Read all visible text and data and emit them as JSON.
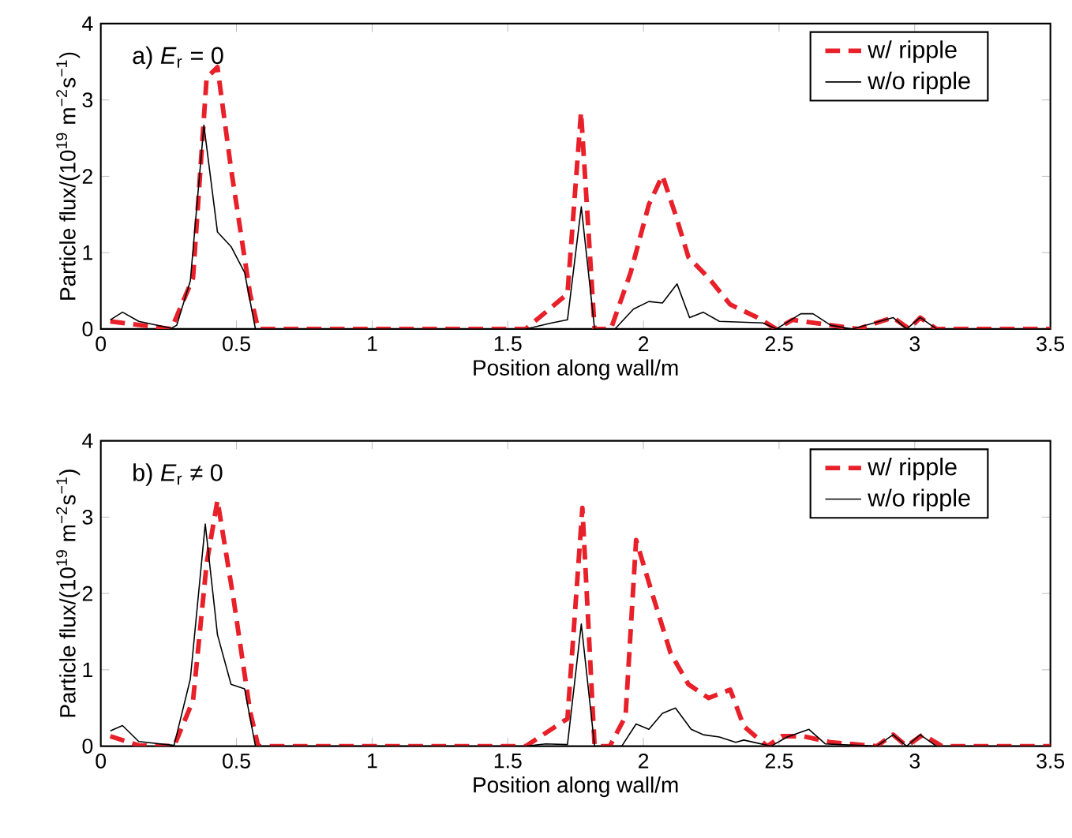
{
  "chart_data": [
    {
      "type": "line",
      "annotations": [
        "a) *E*$_{r}$ = 0"
      ],
      "xlabel": "Position along wall/m",
      "ylabel": "Particle flux/(10$^{19}$ m$^{−2}$s$^{−1}$)",
      "xlim": [
        0,
        3.5
      ],
      "xticks": [
        0,
        0.5,
        1,
        1.5,
        2,
        2.5,
        3,
        3.5
      ],
      "ylim": [
        0,
        4
      ],
      "yticks": [
        0,
        1,
        2,
        3,
        4
      ],
      "grid": false,
      "legend": "top right",
      "series": [
        {
          "name": "w/ ripple",
          "color": "#e8202a",
          "line_style": "dashed",
          "x": [
            0.035,
            0.26,
            0.34,
            0.39,
            0.43,
            0.48,
            0.55,
            0.58,
            1.566,
            1.72,
            1.77,
            1.82,
            1.88,
            1.953,
            2.02,
            2.07,
            2.118,
            2.166,
            2.24,
            2.32,
            2.42,
            2.49,
            2.55,
            2.69,
            2.79,
            2.92,
            2.98,
            3.02,
            3.08,
            3.5
          ],
          "values": [
            0.1,
            0,
            0.67,
            3.29,
            3.43,
            2.1,
            0.46,
            0,
            0,
            0.46,
            2.84,
            0,
            0,
            0.74,
            1.63,
            2.01,
            1.5,
            0.94,
            0.67,
            0.32,
            0.15,
            0,
            0.12,
            0.05,
            0,
            0.15,
            0,
            0.15,
            0,
            0
          ]
        },
        {
          "name": "w/o ripple",
          "color": "#000000",
          "line_style": "solid",
          "x": [
            0.035,
            0.08,
            0.14,
            0.26,
            0.28,
            0.33,
            0.38,
            0.43,
            0.48,
            0.53,
            0.57,
            1.566,
            1.662,
            1.72,
            1.771,
            1.82,
            1.895,
            1.963,
            2.02,
            2.07,
            2.124,
            2.17,
            2.22,
            2.28,
            2.44,
            2.49,
            2.58,
            2.625,
            2.69,
            2.77,
            2.92,
            2.97,
            3.02,
            3.08,
            3.5
          ],
          "values": [
            0.12,
            0.22,
            0.1,
            0.01,
            0.05,
            0.63,
            2.67,
            1.27,
            1.08,
            0.74,
            0,
            0,
            0.08,
            0.12,
            1.6,
            0,
            0,
            0.26,
            0.36,
            0.34,
            0.59,
            0.15,
            0.22,
            0.1,
            0.08,
            0,
            0.2,
            0.2,
            0.05,
            0,
            0.15,
            0,
            0.15,
            0,
            0
          ]
        }
      ]
    },
    {
      "type": "line",
      "annotations": [
        "b) *E*$_{r}$ ≠ 0"
      ],
      "xlabel": "Position along wall/m",
      "ylabel": "Particle flux/(10$^{19}$ m$^{−2}$s$^{−1}$)",
      "xlim": [
        0,
        3.5
      ],
      "xticks": [
        0,
        0.5,
        1,
        1.5,
        2,
        2.5,
        3,
        3.5
      ],
      "ylim": [
        0,
        4
      ],
      "yticks": [
        0,
        1,
        2,
        3,
        4
      ],
      "grid": false,
      "legend": "top right",
      "series": [
        {
          "name": "w/ ripple",
          "color": "#e8202a",
          "line_style": "dashed",
          "x": [
            0.035,
            0.14,
            0.27,
            0.34,
            0.39,
            0.43,
            0.49,
            0.55,
            0.58,
            1.566,
            1.72,
            1.775,
            1.82,
            1.876,
            1.934,
            1.973,
            2.04,
            2.1,
            2.166,
            2.24,
            2.32,
            2.37,
            2.456,
            2.51,
            2.59,
            2.69,
            2.86,
            2.92,
            2.97,
            3.03,
            3.1,
            3.5
          ],
          "values": [
            0.13,
            0.01,
            0,
            0.6,
            2.39,
            3.22,
            1.91,
            0.46,
            0,
            0,
            0.36,
            3.12,
            0,
            0,
            0.39,
            2.7,
            1.91,
            1.22,
            0.81,
            0.63,
            0.74,
            0.26,
            0,
            0.13,
            0.13,
            0.05,
            0,
            0.15,
            0,
            0.15,
            0,
            0
          ]
        },
        {
          "name": "w/o ripple",
          "color": "#000000",
          "line_style": "solid",
          "x": [
            0.035,
            0.08,
            0.14,
            0.27,
            0.33,
            0.385,
            0.43,
            0.48,
            0.53,
            0.57,
            1.566,
            1.64,
            1.72,
            1.771,
            1.82,
            1.92,
            1.973,
            2.02,
            2.07,
            2.118,
            2.176,
            2.22,
            2.28,
            2.34,
            2.37,
            2.47,
            2.53,
            2.61,
            2.67,
            2.86,
            2.92,
            2.97,
            3.02,
            3.08,
            3.5
          ],
          "values": [
            0.2,
            0.27,
            0.06,
            0.01,
            0.88,
            2.91,
            1.46,
            0.81,
            0.75,
            0,
            0,
            0.03,
            0.02,
            1.6,
            0,
            0,
            0.29,
            0.22,
            0.43,
            0.5,
            0.22,
            0.15,
            0.12,
            0.05,
            0.08,
            0,
            0.12,
            0.22,
            0.03,
            0,
            0.15,
            0,
            0.15,
            0,
            0
          ]
        }
      ]
    }
  ]
}
